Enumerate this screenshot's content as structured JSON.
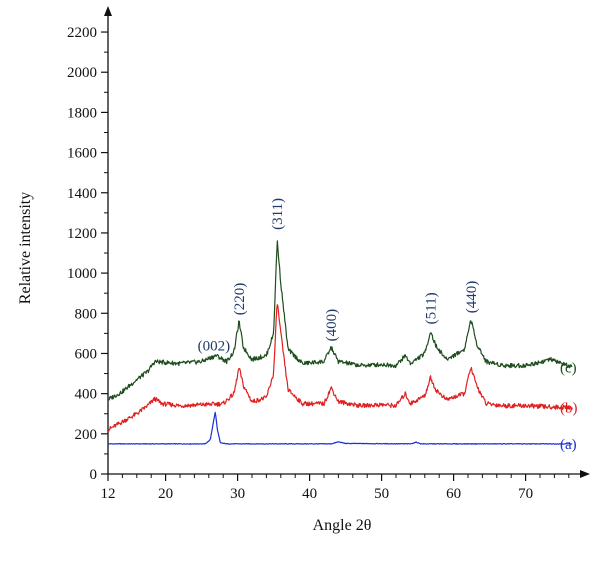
{
  "chart_data": {
    "type": "line",
    "xlabel": "Angle 2θ",
    "ylabel": "Relative intensity",
    "xlim": [
      12,
      77
    ],
    "ylim": [
      0,
      2250
    ],
    "x_ticks": [
      12,
      20,
      30,
      40,
      50,
      60,
      70
    ],
    "x_tick_labels": [
      "12",
      "20",
      "30",
      "40",
      "50",
      "60",
      "70"
    ],
    "y_ticks": [
      0,
      200,
      400,
      600,
      800,
      1000,
      1200,
      1400,
      1600,
      1800,
      2000,
      2200
    ],
    "y_tick_labels": [
      "0",
      "200",
      "400",
      "600",
      "800",
      "1000",
      "1200",
      "1400",
      "1600",
      "1800",
      "2000",
      "2200"
    ],
    "grid": false,
    "series": [
      {
        "name": "(a)",
        "color": "#1a2fd6",
        "baseline": 150,
        "points": [
          [
            12,
            150
          ],
          [
            25.5,
            150
          ],
          [
            26.2,
            170
          ],
          [
            26.6,
            250
          ],
          [
            26.9,
            310
          ],
          [
            27.2,
            220
          ],
          [
            27.6,
            155
          ],
          [
            28.5,
            150
          ],
          [
            43,
            150
          ],
          [
            44,
            160
          ],
          [
            45,
            152
          ],
          [
            54,
            150
          ],
          [
            54.8,
            158
          ],
          [
            55.5,
            150
          ],
          [
            76.5,
            150
          ]
        ]
      },
      {
        "name": "(b)",
        "color": "#e02020",
        "points": [
          [
            12,
            220
          ],
          [
            14,
            260
          ],
          [
            16,
            300
          ],
          [
            17.5,
            340
          ],
          [
            18.5,
            375
          ],
          [
            19.5,
            350
          ],
          [
            22,
            340
          ],
          [
            25,
            345
          ],
          [
            28,
            350
          ],
          [
            29.5,
            400
          ],
          [
            30.2,
            530
          ],
          [
            30.8,
            440
          ],
          [
            32,
            360
          ],
          [
            34,
            380
          ],
          [
            35,
            500
          ],
          [
            35.5,
            860
          ],
          [
            36,
            700
          ],
          [
            37,
            420
          ],
          [
            39,
            350
          ],
          [
            42,
            350
          ],
          [
            43,
            430
          ],
          [
            44,
            360
          ],
          [
            47,
            340
          ],
          [
            50,
            345
          ],
          [
            52,
            340
          ],
          [
            53.3,
            400
          ],
          [
            54,
            350
          ],
          [
            56,
            390
          ],
          [
            56.8,
            480
          ],
          [
            57.5,
            420
          ],
          [
            59,
            370
          ],
          [
            61.5,
            400
          ],
          [
            62.4,
            530
          ],
          [
            63.2,
            440
          ],
          [
            64.5,
            350
          ],
          [
            67,
            340
          ],
          [
            70,
            340
          ],
          [
            73,
            335
          ],
          [
            76.5,
            330
          ]
        ]
      },
      {
        "name": "(c)",
        "color": "#1e4d1e",
        "points": [
          [
            12,
            370
          ],
          [
            14,
            410
          ],
          [
            16,
            470
          ],
          [
            17.5,
            510
          ],
          [
            18.5,
            560
          ],
          [
            20,
            555
          ],
          [
            22,
            550
          ],
          [
            25,
            560
          ],
          [
            27,
            590
          ],
          [
            28.5,
            560
          ],
          [
            29.5,
            610
          ],
          [
            30.2,
            760
          ],
          [
            30.8,
            630
          ],
          [
            32,
            570
          ],
          [
            34,
            590
          ],
          [
            35,
            700
          ],
          [
            35.5,
            1165
          ],
          [
            36,
            950
          ],
          [
            37,
            620
          ],
          [
            39,
            550
          ],
          [
            42,
            560
          ],
          [
            43,
            630
          ],
          [
            44,
            560
          ],
          [
            47,
            540
          ],
          [
            50,
            545
          ],
          [
            52,
            540
          ],
          [
            53.3,
            590
          ],
          [
            54,
            550
          ],
          [
            56,
            600
          ],
          [
            56.8,
            710
          ],
          [
            57.5,
            640
          ],
          [
            59,
            570
          ],
          [
            61.5,
            620
          ],
          [
            62.4,
            770
          ],
          [
            63.2,
            650
          ],
          [
            64.5,
            560
          ],
          [
            67,
            540
          ],
          [
            70,
            540
          ],
          [
            73.5,
            570
          ],
          [
            76.5,
            530
          ]
        ]
      }
    ],
    "annotations": [
      {
        "text": "(002)",
        "x": 26.7,
        "y": 615
      },
      {
        "text": "(220)",
        "x": 30.2,
        "y": 790
      },
      {
        "text": "(311)",
        "x": 35.5,
        "y": 1215
      },
      {
        "text": "(400)",
        "x": 43.0,
        "y": 660
      },
      {
        "text": "(511)",
        "x": 56.8,
        "y": 745
      },
      {
        "text": "(440)",
        "x": 62.4,
        "y": 800
      }
    ]
  }
}
